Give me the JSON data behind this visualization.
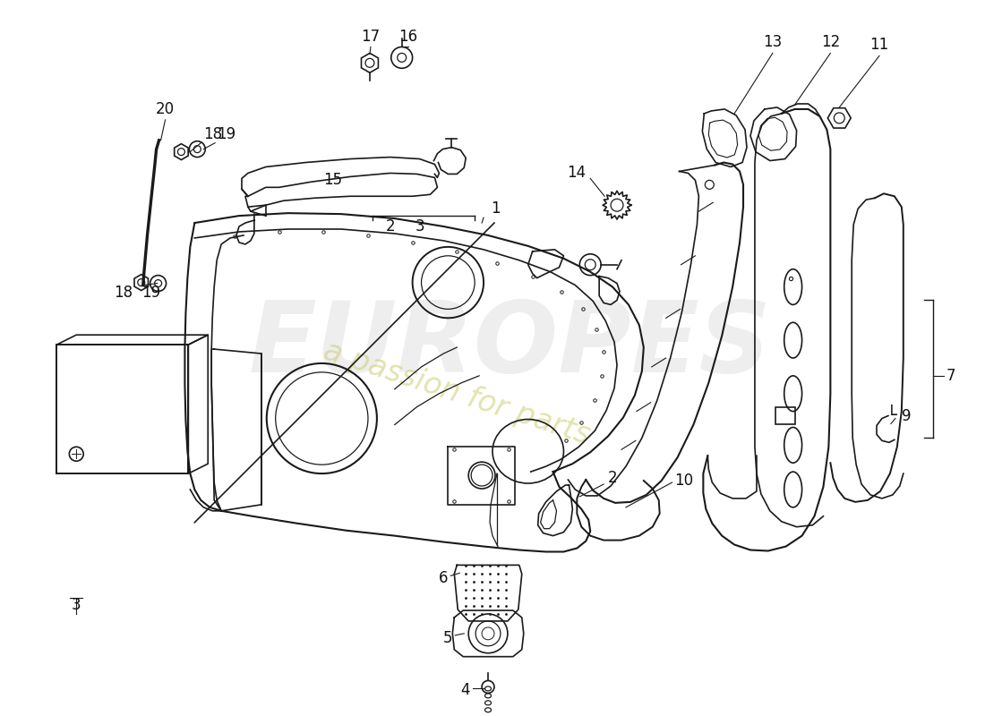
{
  "background_color": "#ffffff",
  "line_color": "#1a1a1a",
  "label_fontsize": 12,
  "watermark1": "EUROPES",
  "watermark2": "a passion for parts",
  "wm1_color": "#c8c8c8",
  "wm2_color": "#c8c864"
}
